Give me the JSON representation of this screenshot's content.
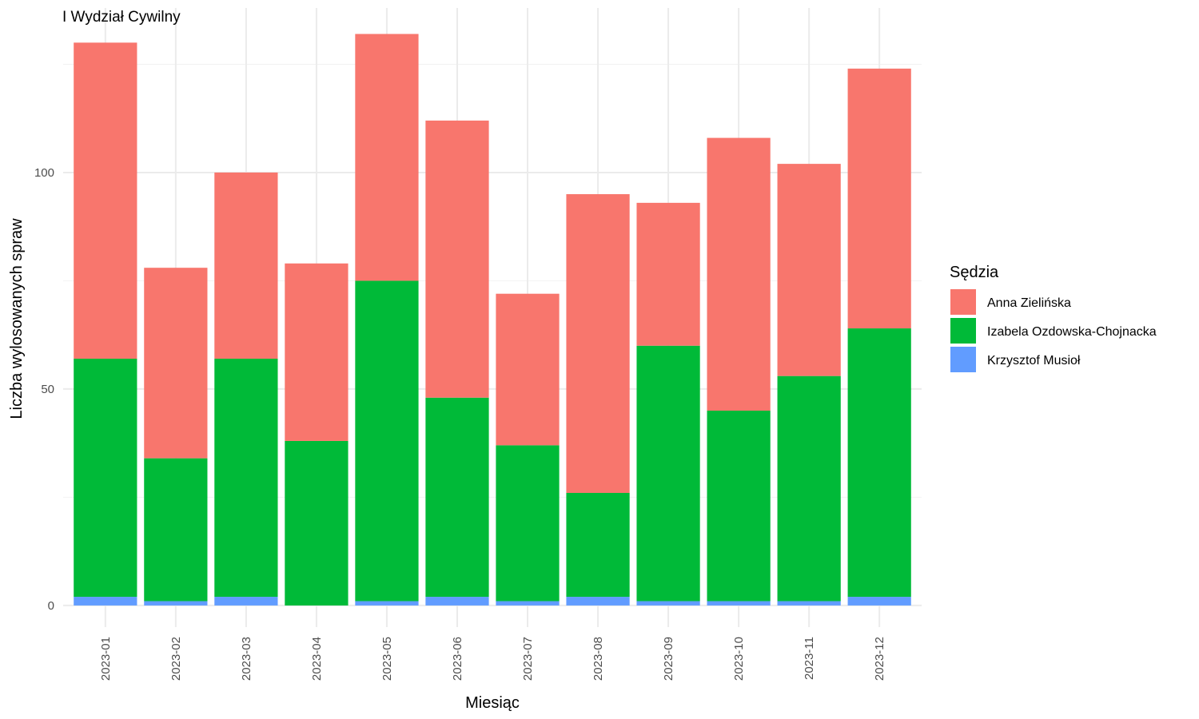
{
  "chart_data": {
    "type": "bar",
    "stacked": true,
    "title": "I Wydział Cywilny",
    "xlabel": "Miesiąc",
    "ylabel": "Liczba wylosowanych spraw",
    "ylim": [
      -5,
      138
    ],
    "yticks": [
      0,
      50,
      100
    ],
    "grid": true,
    "legend_position": "right",
    "legend_title": "Sędzia",
    "categories": [
      "2023-01",
      "2023-02",
      "2023-03",
      "2023-04",
      "2023-05",
      "2023-06",
      "2023-07",
      "2023-08",
      "2023-09",
      "2023-10",
      "2023-11",
      "2023-12"
    ],
    "series": [
      {
        "name": "Krzysztof Musioł",
        "color": "#619CFF",
        "values": [
          2,
          1,
          2,
          0,
          1,
          2,
          1,
          2,
          1,
          1,
          1,
          2
        ]
      },
      {
        "name": "Izabela Ozdowska-Chojnacka",
        "color": "#00BA38",
        "values": [
          55,
          33,
          55,
          38,
          74,
          46,
          36,
          24,
          59,
          44,
          52,
          62
        ]
      },
      {
        "name": "Anna Zielińska",
        "color": "#F8766D",
        "values": [
          73,
          44,
          43,
          41,
          57,
          64,
          35,
          69,
          33,
          63,
          49,
          60
        ]
      }
    ],
    "legend_order": [
      "Anna Zielińska",
      "Izabela Ozdowska-Chojnacka",
      "Krzysztof Musioł"
    ]
  }
}
